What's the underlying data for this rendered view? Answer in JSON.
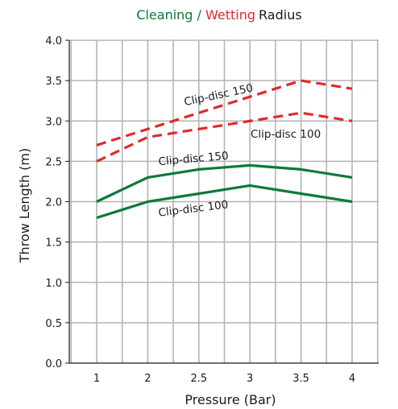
{
  "chart_data": {
    "type": "line",
    "title": {
      "part1": "Cleaning",
      "separator": " / ",
      "part2": "Wetting",
      "part3": "Radius"
    },
    "xlabel": "Pressure (Bar)",
    "ylabel": "Throw Length (m)",
    "x_ticks": [
      "1",
      "2",
      "2.5",
      "3",
      "3.5",
      "4"
    ],
    "y_ticks": [
      "0.0",
      "0.5",
      "1.0",
      "1.5",
      "2.0",
      "2.5",
      "3.0",
      "3.5",
      "4.0"
    ],
    "ylim": [
      0,
      4
    ],
    "grid": true,
    "series": [
      {
        "id": "wetting-150",
        "name": "Clip-disc 150",
        "group": "Wetting",
        "color": "#e02a2a",
        "dashed": true,
        "x": [
          "1",
          "2",
          "2.5",
          "3",
          "3.5",
          "4"
        ],
        "values": [
          2.7,
          2.9,
          3.1,
          3.3,
          3.5,
          3.4
        ]
      },
      {
        "id": "wetting-100",
        "name": "Clip-disc 100",
        "group": "Wetting",
        "color": "#e02a2a",
        "dashed": true,
        "x": [
          "1",
          "2",
          "2.5",
          "3",
          "3.5",
          "4"
        ],
        "values": [
          2.5,
          2.8,
          2.9,
          3.0,
          3.1,
          3.0
        ]
      },
      {
        "id": "cleaning-150",
        "name": "Clip-disc 150",
        "group": "Cleaning",
        "color": "#0a7a3a",
        "dashed": false,
        "x": [
          "1",
          "2",
          "2.5",
          "3",
          "3.5",
          "4"
        ],
        "values": [
          2.0,
          2.3,
          2.4,
          2.45,
          2.4,
          2.3
        ]
      },
      {
        "id": "cleaning-100",
        "name": "Clip-disc 100",
        "group": "Cleaning",
        "color": "#0a7a3a",
        "dashed": false,
        "x": [
          "1",
          "2",
          "2.5",
          "3",
          "3.5",
          "4"
        ],
        "values": [
          1.8,
          2.0,
          2.1,
          2.2,
          2.1,
          2.0
        ]
      }
    ],
    "colors": {
      "cleaning": "#0a7a3a",
      "wetting": "#e02a2a",
      "grid": "#b4b4b4",
      "axis": "#1a1a1a"
    }
  }
}
